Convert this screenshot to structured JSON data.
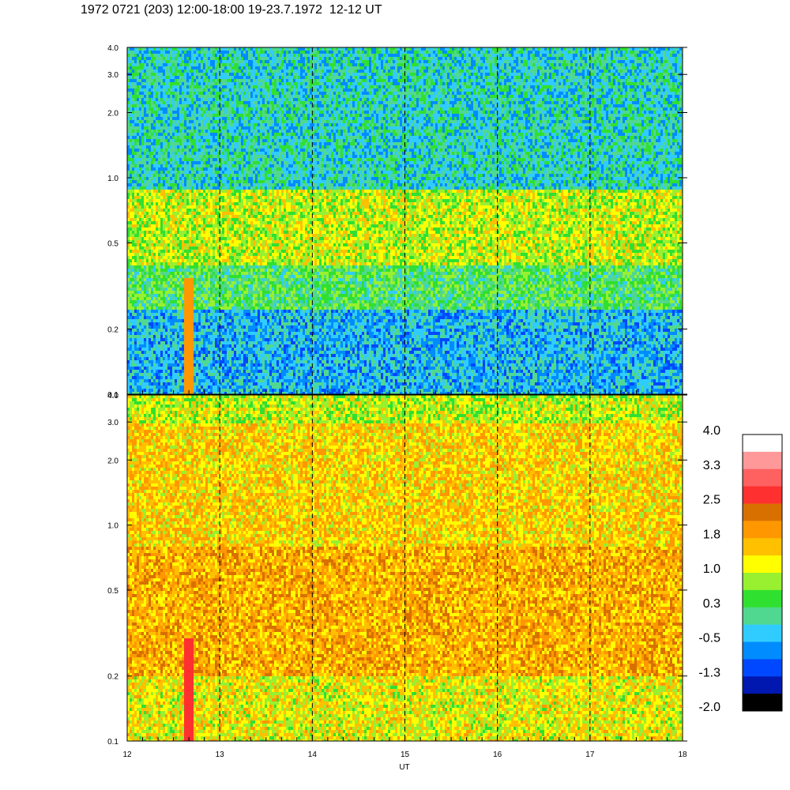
{
  "title": "1972 0721 (203) 12:00-18:00 19-23.7.1972  12-12 UT",
  "colors": {
    "palette": [
      "#000000",
      "#0018b0",
      "#0048ff",
      "#008cff",
      "#30ccff",
      "#50d890",
      "#30e030",
      "#98f030",
      "#ffff00",
      "#ffc000",
      "#ff9800",
      "#d87000",
      "#ff3030",
      "#ff6060",
      "#ff9898",
      "#ffffff"
    ]
  },
  "chart_data": [
    {
      "type": "heatmap",
      "panel": "top",
      "x": {
        "range": [
          12,
          18
        ],
        "tick_labels": [
          "12",
          "13",
          "14",
          "15",
          "16",
          "17",
          "18"
        ],
        "dashed_gridlines": [
          13,
          14,
          15,
          16,
          17
        ]
      },
      "y": {
        "scale": "log",
        "range": [
          0.1,
          4.0
        ],
        "tick_labels": [
          "0.1",
          "0.2",
          "0.5",
          "1.0",
          "2.0",
          "3.0",
          "4.0"
        ],
        "ticks": [
          0.1,
          0.2,
          0.5,
          1.0,
          2.0,
          3.0,
          4.0
        ]
      },
      "dominant_levels": [
        {
          "y_band": [
            0.1,
            0.25
          ],
          "value": -0.5
        },
        {
          "y_band": [
            0.25,
            0.4
          ],
          "value": 0.3
        },
        {
          "y_band": [
            0.4,
            0.9
          ],
          "value": 1.0
        },
        {
          "y_band": [
            0.9,
            4.0
          ],
          "value": -0.2
        }
      ],
      "features": [
        {
          "x": 12.65,
          "y_band": [
            0.1,
            0.35
          ],
          "value": 1.8
        }
      ]
    },
    {
      "type": "heatmap",
      "panel": "bottom",
      "x": {
        "range": [
          12,
          18
        ],
        "tick_labels": [
          "12",
          "13",
          "14",
          "15",
          "16",
          "17",
          "18"
        ],
        "xlabel": "UT",
        "dashed_gridlines": [
          13,
          14,
          15,
          16,
          17
        ]
      },
      "y": {
        "scale": "log",
        "range": [
          0.1,
          4.0
        ],
        "tick_labels": [
          "0.1",
          "0.2",
          "0.5",
          "1.0",
          "2.0",
          "3.0",
          "4.0"
        ],
        "ticks": [
          0.1,
          0.2,
          0.5,
          1.0,
          2.0,
          3.0,
          4.0
        ]
      },
      "dominant_levels": [
        {
          "y_band": [
            0.1,
            0.2
          ],
          "value": 1.2
        },
        {
          "y_band": [
            0.2,
            0.8
          ],
          "value": 1.8
        },
        {
          "y_band": [
            0.8,
            3.0
          ],
          "value": 1.5
        },
        {
          "y_band": [
            3.0,
            4.0
          ],
          "value": 1.0
        }
      ],
      "features": [
        {
          "x": 12.65,
          "y_band": [
            0.1,
            0.3
          ],
          "value": 2.6
        }
      ]
    },
    {
      "type": "colorbar",
      "range": [
        -2.0,
        4.0
      ],
      "labels": [
        "4.0",
        "3.3",
        "2.5",
        "1.8",
        "1.0",
        "0.3",
        "-0.5",
        "-1.3",
        "-2.0"
      ]
    }
  ]
}
